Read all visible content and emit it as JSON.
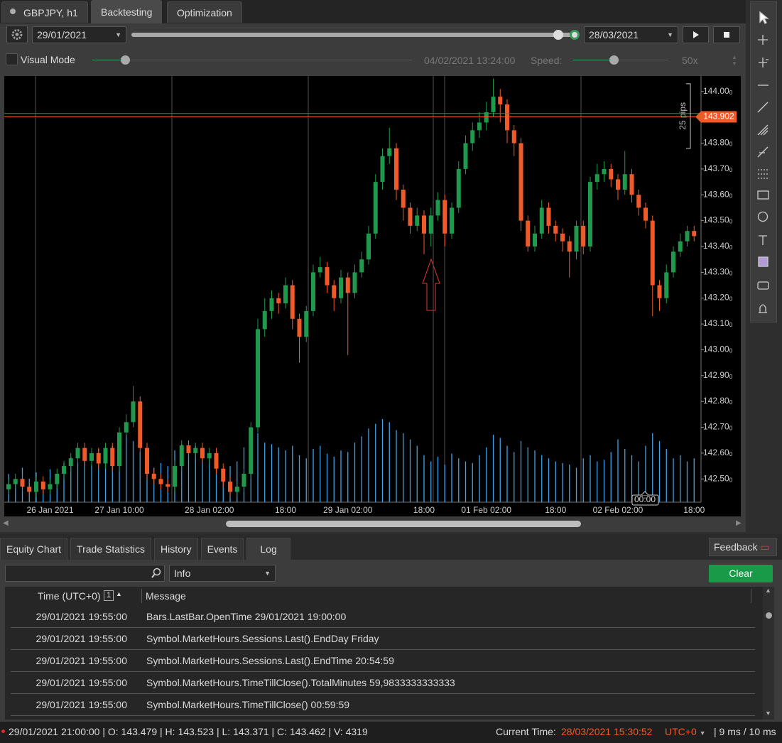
{
  "tabs": {
    "symbol": "GBPJPY, h1",
    "items": [
      "Backtesting",
      "Optimization"
    ]
  },
  "controls": {
    "start_date": "29/01/2021",
    "end_date": "28/03/2021",
    "visual_mode": "Visual Mode",
    "current_time": "04/02/2021 13:24:00",
    "speed_label": "Speed:",
    "speed": "50x"
  },
  "chart_data": {
    "type": "candlestick",
    "categories": [
      null,
      null,
      null,
      null,
      null,
      null,
      "26 Jan 2021",
      null,
      null,
      null,
      null,
      null,
      null,
      null,
      null,
      null,
      "27 Jan 10:00",
      null,
      null,
      null,
      null,
      null,
      null,
      null,
      null,
      null,
      null,
      null,
      null,
      "28 Jan 02:00",
      null,
      null,
      null,
      null,
      null,
      null,
      null,
      null,
      null,
      null,
      "18:00",
      null,
      null,
      null,
      null,
      null,
      null,
      null,
      null,
      "29 Jan 02:00",
      null,
      null,
      null,
      null,
      null,
      null,
      null,
      null,
      null,
      null,
      "18:00",
      null,
      null,
      null,
      null,
      null,
      null,
      null,
      null,
      "01 Feb 02:00",
      null,
      null,
      null,
      null,
      null,
      null,
      null,
      null,
      null,
      "18:00",
      null,
      null,
      null,
      null,
      null,
      null,
      null,
      null,
      "02 Feb 02:00",
      null,
      null,
      null,
      null,
      null,
      null,
      null,
      null,
      null,
      null,
      "18:00"
    ],
    "open": [
      142.46,
      142.48,
      142.5,
      142.47,
      142.45,
      142.49,
      142.46,
      142.48,
      142.52,
      142.55,
      142.58,
      142.62,
      142.57,
      142.6,
      142.56,
      142.62,
      142.55,
      142.68,
      142.72,
      142.8,
      142.62,
      142.52,
      142.5,
      142.48,
      142.47,
      142.55,
      142.63,
      142.6,
      142.62,
      142.58,
      142.6,
      142.54,
      142.49,
      142.45,
      142.47,
      142.52,
      142.7,
      143.08,
      143.15,
      143.2,
      143.18,
      143.25,
      143.12,
      143.05,
      143.15,
      143.3,
      143.32,
      143.25,
      143.2,
      143.28,
      143.22,
      143.3,
      143.35,
      143.45,
      143.65,
      143.75,
      143.78,
      143.62,
      143.55,
      143.48,
      143.52,
      143.45,
      143.52,
      143.58,
      143.45,
      143.55,
      143.7,
      143.8,
      143.85,
      143.88,
      143.92,
      143.98,
      143.95,
      143.85,
      143.8,
      143.5,
      143.4,
      143.45,
      143.55,
      143.48,
      143.45,
      143.42,
      143.38,
      143.48,
      143.4,
      143.65,
      143.68,
      143.7,
      143.66,
      143.62,
      143.68,
      143.6,
      143.55,
      143.5,
      143.25,
      143.2,
      143.3,
      143.38,
      143.42,
      143.46
    ],
    "high": [
      142.5,
      142.52,
      142.52,
      142.49,
      142.51,
      142.51,
      142.5,
      142.54,
      142.57,
      142.6,
      142.64,
      142.64,
      142.62,
      142.62,
      142.64,
      142.64,
      142.7,
      142.75,
      142.86,
      142.82,
      142.64,
      142.54,
      142.52,
      142.5,
      142.57,
      142.65,
      142.65,
      142.64,
      142.64,
      142.62,
      142.62,
      142.56,
      142.51,
      142.49,
      142.54,
      142.72,
      143.12,
      143.2,
      143.23,
      143.22,
      143.28,
      143.27,
      143.14,
      143.17,
      143.33,
      143.36,
      143.34,
      143.27,
      143.31,
      143.3,
      143.33,
      143.38,
      143.48,
      143.68,
      143.78,
      143.86,
      143.8,
      143.64,
      143.57,
      143.55,
      143.54,
      143.55,
      143.61,
      143.6,
      143.57,
      143.73,
      143.83,
      143.88,
      143.92,
      143.96,
      144.05,
      144.01,
      143.97,
      143.87,
      143.82,
      143.52,
      143.48,
      143.58,
      143.57,
      143.5,
      143.47,
      143.44,
      143.5,
      143.5,
      143.67,
      143.72,
      143.73,
      143.72,
      143.68,
      143.77,
      143.7,
      143.62,
      143.57,
      143.52,
      143.27,
      143.33,
      143.4,
      143.45,
      143.48,
      143.48
    ],
    "low": [
      142.44,
      142.46,
      142.45,
      142.43,
      142.43,
      142.44,
      142.44,
      142.46,
      142.5,
      142.53,
      142.56,
      142.55,
      142.55,
      142.54,
      142.54,
      142.53,
      142.53,
      142.66,
      142.7,
      142.6,
      142.5,
      142.48,
      142.46,
      142.45,
      142.45,
      142.53,
      142.58,
      142.58,
      142.56,
      142.56,
      142.52,
      142.47,
      142.43,
      142.43,
      142.45,
      142.5,
      142.68,
      143.05,
      143.12,
      143.14,
      143.16,
      143.08,
      142.95,
      143.03,
      143.13,
      143.28,
      143.22,
      143.15,
      143.18,
      142.98,
      143.2,
      143.28,
      143.33,
      143.43,
      143.62,
      143.72,
      143.58,
      143.5,
      143.45,
      143.46,
      143.37,
      143.4,
      143.5,
      143.4,
      143.43,
      143.53,
      143.68,
      143.77,
      143.82,
      143.85,
      143.9,
      143.88,
      143.8,
      143.75,
      143.46,
      143.38,
      143.38,
      143.43,
      143.45,
      143.42,
      143.38,
      143.28,
      143.35,
      143.37,
      143.38,
      143.62,
      143.65,
      143.63,
      143.58,
      143.6,
      143.57,
      143.52,
      143.47,
      143.13,
      143.15,
      143.18,
      143.28,
      143.36,
      143.4,
      143.42
    ],
    "close": [
      142.48,
      142.5,
      142.47,
      142.45,
      142.49,
      142.46,
      142.48,
      142.52,
      142.55,
      142.58,
      142.62,
      142.57,
      142.6,
      142.56,
      142.62,
      142.55,
      142.68,
      142.72,
      142.8,
      142.62,
      142.52,
      142.5,
      142.48,
      142.47,
      142.55,
      142.63,
      142.6,
      142.62,
      142.58,
      142.6,
      142.54,
      142.49,
      142.45,
      142.47,
      142.52,
      142.7,
      143.08,
      143.15,
      143.2,
      143.18,
      143.25,
      143.12,
      143.05,
      143.15,
      143.3,
      143.32,
      143.25,
      143.2,
      143.28,
      143.22,
      143.3,
      143.35,
      143.45,
      143.65,
      143.75,
      143.78,
      143.62,
      143.55,
      143.48,
      143.52,
      143.45,
      143.52,
      143.58,
      143.45,
      143.55,
      143.7,
      143.8,
      143.85,
      143.88,
      143.92,
      143.98,
      143.95,
      143.85,
      143.8,
      143.5,
      143.4,
      143.45,
      143.55,
      143.48,
      143.45,
      143.42,
      143.38,
      143.48,
      143.4,
      143.65,
      143.68,
      143.7,
      143.66,
      143.62,
      143.68,
      143.6,
      143.55,
      143.5,
      143.25,
      143.2,
      143.3,
      143.38,
      143.42,
      143.46,
      143.44
    ],
    "volume": [
      1800,
      1200,
      2200,
      1500,
      1900,
      1300,
      2100,
      1600,
      2500,
      2900,
      2600,
      3000,
      2400,
      3400,
      2700,
      3600,
      4000,
      4300,
      3900,
      3200,
      2600,
      2200,
      2500,
      2300,
      3300,
      3700,
      3400,
      3600,
      3300,
      3000,
      2500,
      2000,
      2300,
      2600,
      3500,
      4700,
      4400,
      3800,
      3700,
      3500,
      3300,
      3600,
      3000,
      2800,
      3400,
      3600,
      3100,
      2900,
      3300,
      3200,
      3800,
      4200,
      4700,
      5000,
      5300,
      5100,
      4600,
      4400,
      4000,
      3600,
      3000,
      2600,
      2900,
      2400,
      3100,
      2800,
      2600,
      2500,
      3000,
      3500,
      4300,
      4100,
      3600,
      3200,
      3900,
      3500,
      3300,
      3000,
      2800,
      2600,
      2500,
      2400,
      2200,
      2800,
      3000,
      2600,
      2700,
      3200,
      4000,
      3400,
      3000,
      2600,
      3600,
      4400,
      3900,
      3400,
      2800,
      3000,
      2600,
      2800
    ],
    "up_color": "#1f9a4c",
    "down_color": "#f05a28",
    "volume_color": "#3ea3e6",
    "ylim": [
      142.41,
      144.06
    ],
    "yticks": [
      {
        "value": 144.0,
        "label": "144.000"
      },
      {
        "value": 143.9,
        "label": "143.900"
      },
      {
        "value": 143.8,
        "label": "143.800"
      },
      {
        "value": 143.7,
        "label": "143.700"
      },
      {
        "value": 143.6,
        "label": "143.600"
      },
      {
        "value": 143.5,
        "label": "143.500"
      },
      {
        "value": 143.4,
        "label": "143.400"
      },
      {
        "value": 143.3,
        "label": "143.300"
      },
      {
        "value": 143.2,
        "label": "143.200"
      },
      {
        "value": 143.1,
        "label": "143.100"
      },
      {
        "value": 143.0,
        "label": "143.000"
      },
      {
        "value": 142.9,
        "label": "142.900"
      },
      {
        "value": 142.8,
        "label": "142.800"
      },
      {
        "value": 142.7,
        "label": "142.700"
      },
      {
        "value": 142.6,
        "label": "142.600"
      },
      {
        "value": 142.5,
        "label": "142.500"
      }
    ],
    "price_lines": [
      {
        "value": 143.915,
        "color": "#1f9a4c"
      },
      {
        "value": 143.902,
        "label": "143.902",
        "color": "#f05a28"
      }
    ],
    "ruler": {
      "from": 144.03,
      "to": 143.78,
      "label": "25 pips"
    },
    "cursor_label": "00:00"
  },
  "bottom_tabs": {
    "items": [
      "Equity Chart",
      "Trade Statistics",
      "History",
      "Events",
      "Log"
    ],
    "feedback": "Feedback"
  },
  "log": {
    "filter": "Info",
    "clear": "Clear",
    "columns": [
      "Time (UTC+0)",
      "Message"
    ],
    "sort_index": "1",
    "rows": [
      [
        "29/01/2021 19:55:00",
        "Bars.LastBar.OpenTime 29/01/2021 19:00:00"
      ],
      [
        "29/01/2021 19:55:00",
        "Symbol.MarketHours.Sessions.Last().EndDay Friday"
      ],
      [
        "29/01/2021 19:55:00",
        "Symbol.MarketHours.Sessions.Last().EndTime 20:54:59"
      ],
      [
        "29/01/2021 19:55:00",
        "Symbol.MarketHours.TimeTillClose().TotalMinutes 59,9833333333333"
      ],
      [
        "29/01/2021 19:55:00",
        "Symbol.MarketHours.TimeTillClose() 00:59:59"
      ]
    ]
  },
  "status": {
    "bar": "29/01/2021 21:00:00 | O: 143.479 | H: 143.523 | L: 143.371 | C: 143.462 | V: 4319",
    "current_time_label": "Current Time:",
    "current_time": "28/03/2021 15:30:52",
    "timezone": "UTC+0",
    "timing": "| 9 ms / 10 ms"
  }
}
